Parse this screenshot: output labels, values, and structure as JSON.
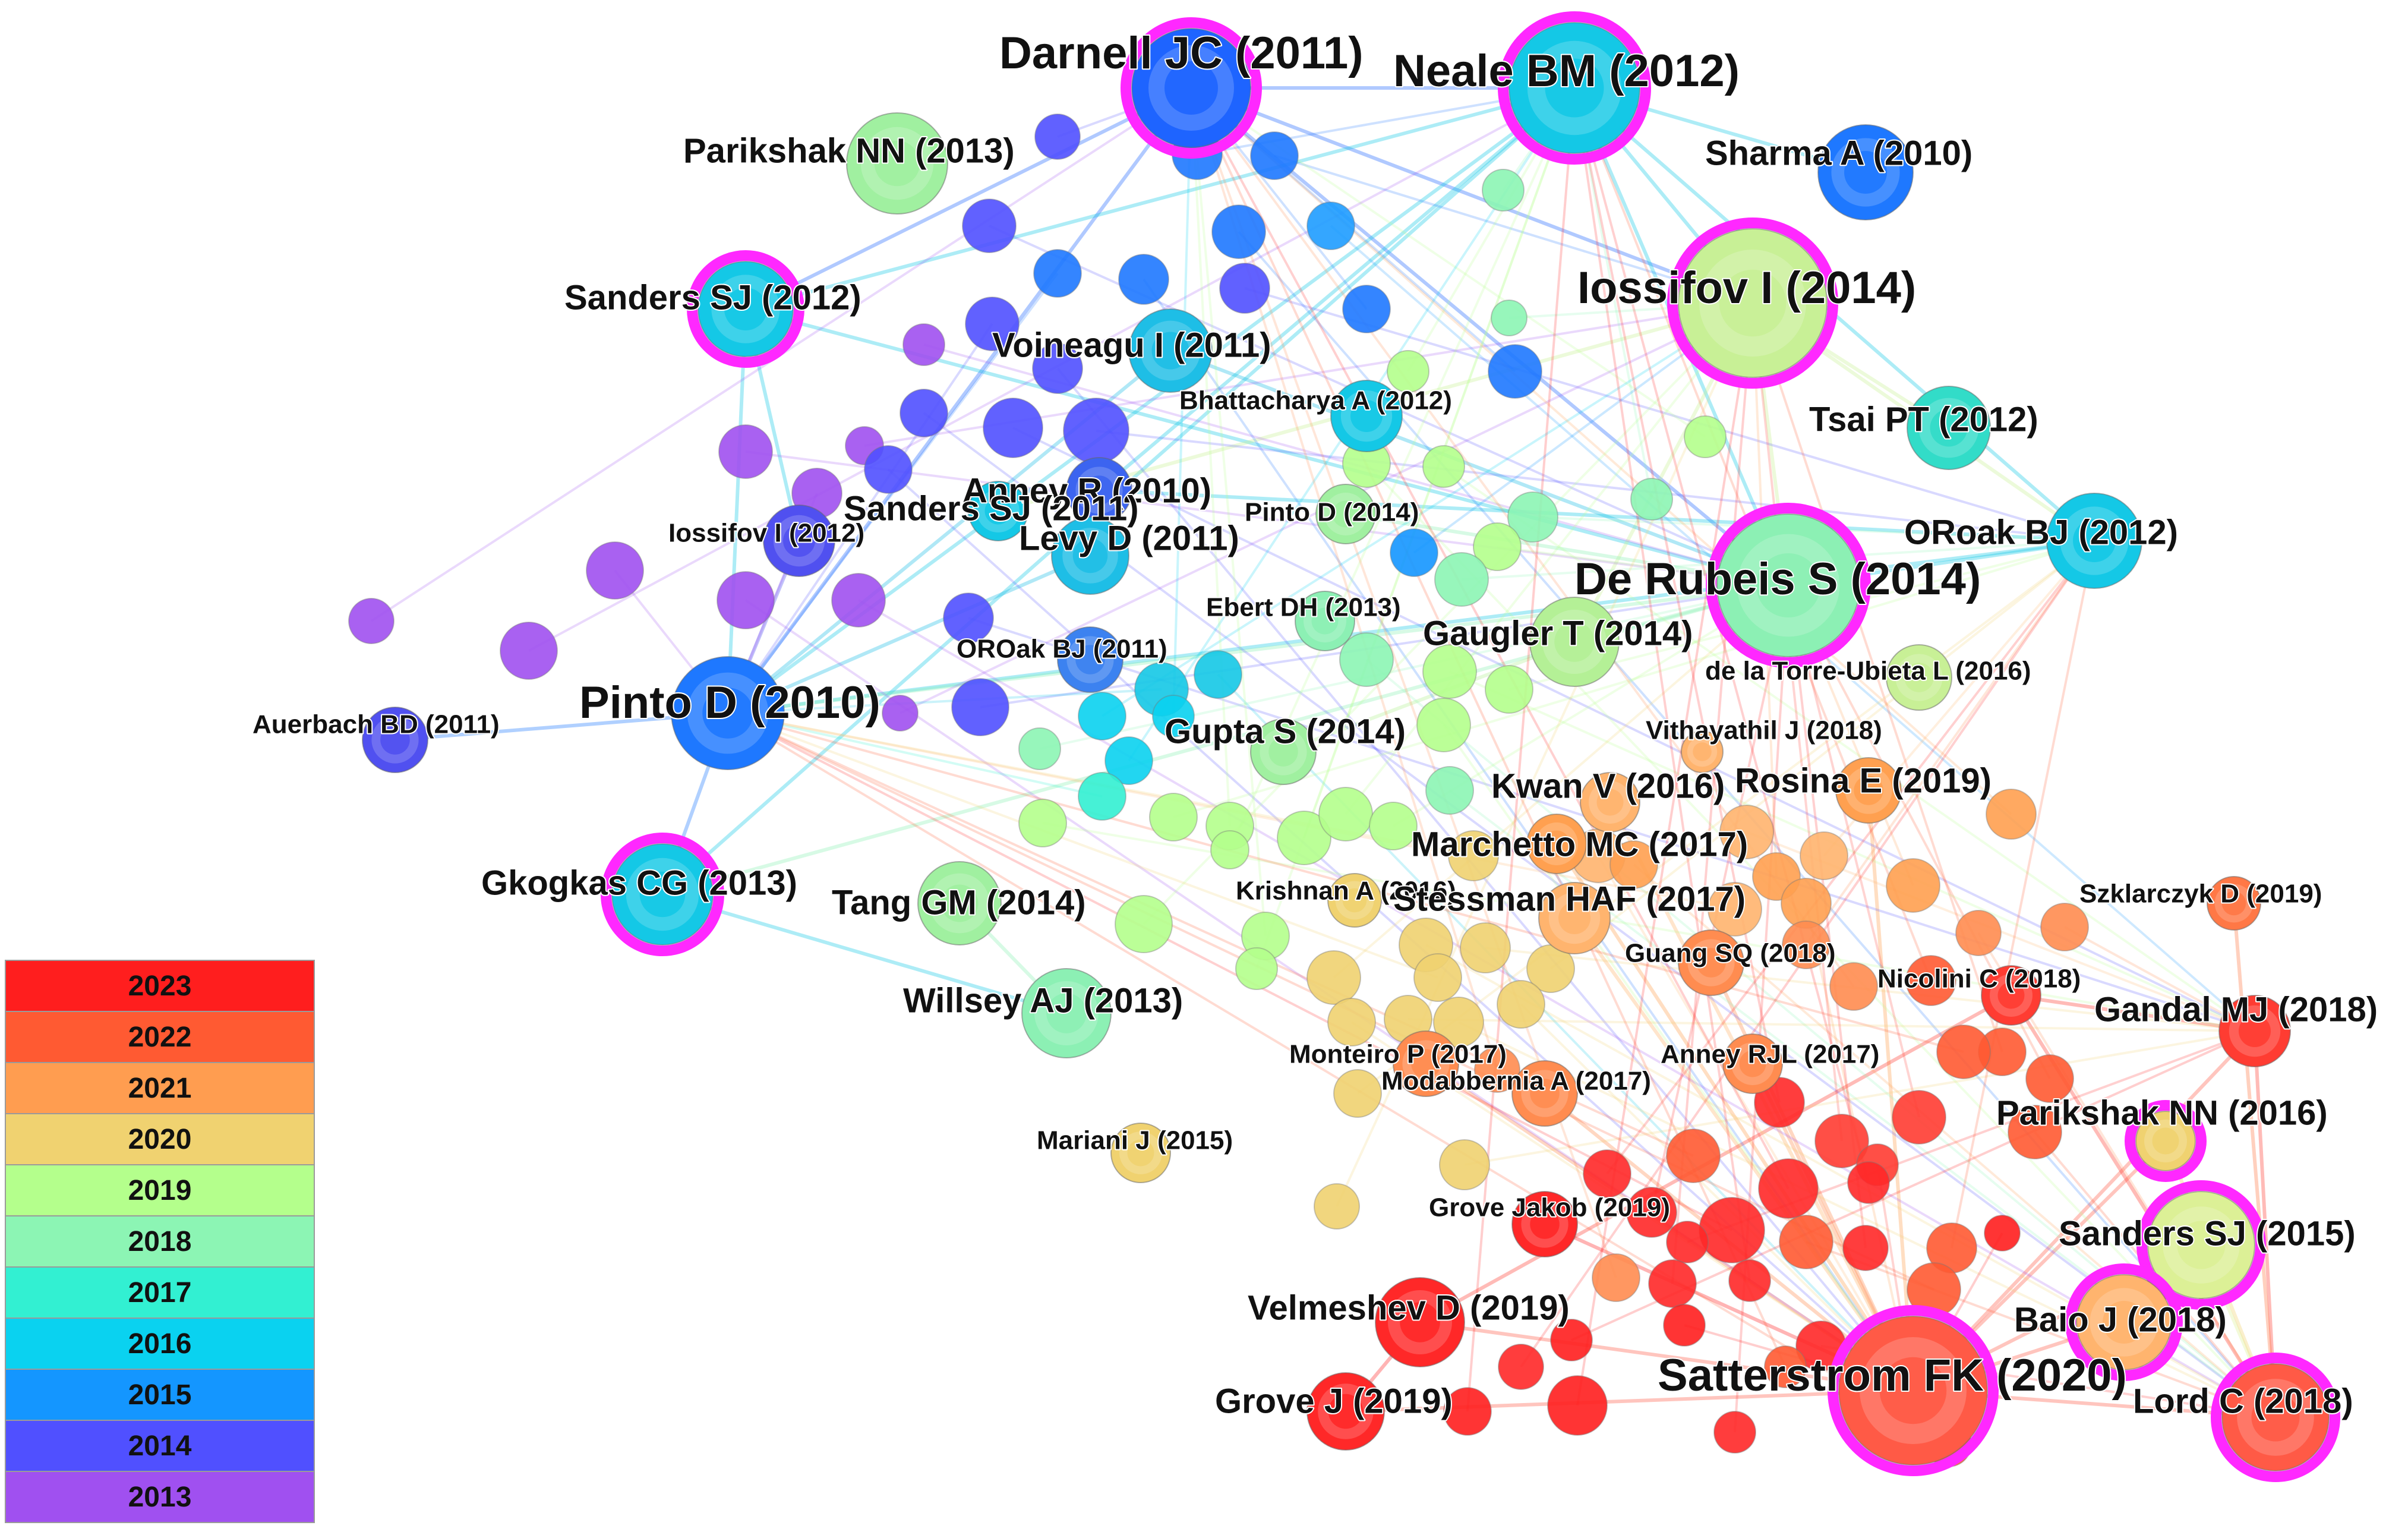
{
  "legend": {
    "years": [
      "2023",
      "2022",
      "2021",
      "2020",
      "2019",
      "2018",
      "2017",
      "2016",
      "2015",
      "2014",
      "2013"
    ],
    "colors": [
      "#ff1e1e",
      "#ff5a32",
      "#ff9d50",
      "#f0d270",
      "#b4ff8c",
      "#8cf5b4",
      "#32f0d2",
      "#0ad2f0",
      "#1496ff",
      "#5050ff",
      "#a050f0"
    ]
  },
  "nodes": [
    {
      "label": "Darnell JC (2011)",
      "color": "#1e64ff",
      "burst": true
    },
    {
      "label": "Neale BM (2012)",
      "color": "#14c8e6",
      "burst": true
    },
    {
      "label": "Parikshak NN (2013)",
      "color": "#a0f0a0",
      "burst": false
    },
    {
      "label": "Sharma A (2010)",
      "color": "#1e78ff",
      "burst": false
    },
    {
      "label": "Sanders SJ (2012)",
      "color": "#14c8e6",
      "burst": true
    },
    {
      "label": "Iossifov I (2014)",
      "color": "#c8f096",
      "burst": true
    },
    {
      "label": "Voineagu I (2011)",
      "color": "#1ebee6",
      "burst": false
    },
    {
      "label": "Bhattacharya A (2012)",
      "color": "#14c8e6",
      "burst": false
    },
    {
      "label": "Tsai PT (2012)",
      "color": "#32dcc8",
      "burst": false
    },
    {
      "label": "Anney R (2010)",
      "color": "#3c64f0",
      "burst": false
    },
    {
      "label": "Sanders SJ (2011)",
      "color": "#14c8e6",
      "burst": false
    },
    {
      "label": "Pinto D (2014)",
      "color": "#a0f0a0",
      "burst": false
    },
    {
      "label": "ORoak BJ (2012)",
      "color": "#14c8e6",
      "burst": false
    },
    {
      "label": "Iossifov I (2012)",
      "color": "#5050f0",
      "burst": false
    },
    {
      "label": "Levy D (2011)",
      "color": "#1ebee6",
      "burst": false
    },
    {
      "label": "De Rubeis S (2014)",
      "color": "#8cf0b4",
      "burst": true
    },
    {
      "label": "Ebert DH (2013)",
      "color": "#8cf0b4",
      "burst": false
    },
    {
      "label": "Gaugler T (2014)",
      "color": "#b4f096",
      "burst": false
    },
    {
      "label": "OROak BJ (2011)",
      "color": "#3c82f0",
      "burst": false
    },
    {
      "label": "de la Torre-Ubieta L (2016)",
      "color": "#c8f096",
      "burst": false
    },
    {
      "label": "Pinto D (2010)",
      "color": "#1e78ff",
      "burst": false
    },
    {
      "label": "Auerbach BD (2011)",
      "color": "#5050f0",
      "burst": false
    },
    {
      "label": "Vithayathil J (2018)",
      "color": "#ffb46e",
      "burst": false
    },
    {
      "label": "Gupta S (2014)",
      "color": "#a0f0a0",
      "burst": false
    },
    {
      "label": "Kwan V (2016)",
      "color": "#ffb46e",
      "burst": false
    },
    {
      "label": "Rosina E (2019)",
      "color": "#ffa050",
      "burst": false
    },
    {
      "label": "Marchetto MC (2017)",
      "color": "#ffa050",
      "burst": false
    },
    {
      "label": "Gkogkas CG (2013)",
      "color": "#14c8e6",
      "burst": true
    },
    {
      "label": "Tang GM (2014)",
      "color": "#a0f0a0",
      "burst": false
    },
    {
      "label": "Krishnan A (2016)",
      "color": "#f0d270",
      "burst": false
    },
    {
      "label": "Stessman HAF (2017)",
      "color": "#ffb46e",
      "burst": false
    },
    {
      "label": "Szklarczyk D (2019)",
      "color": "#ff7846",
      "burst": false
    },
    {
      "label": "Guang SQ (2018)",
      "color": "#ff8c50",
      "burst": false
    },
    {
      "label": "Nicolini C (2018)",
      "color": "#ff3c32",
      "burst": false
    },
    {
      "label": "Willsey AJ (2013)",
      "color": "#8cf0b4",
      "burst": false
    },
    {
      "label": "Gandal MJ (2018)",
      "color": "#ff3c32",
      "burst": false
    },
    {
      "label": "Monteiro P (2017)",
      "color": "#ff8c50",
      "burst": false
    },
    {
      "label": "Anney RJL (2017)",
      "color": "#ff8c50",
      "burst": false
    },
    {
      "label": "Modabbernia A (2017)",
      "color": "#ff8c50",
      "burst": false
    },
    {
      "label": "Parikshak NN (2016)",
      "color": "#f0d270",
      "burst": true
    },
    {
      "label": "Mariani J (2015)",
      "color": "#f0d270",
      "burst": false
    },
    {
      "label": "Grove Jakob (2019)",
      "color": "#ff2828",
      "burst": false
    },
    {
      "label": "Sanders SJ (2015)",
      "color": "#dcf096",
      "burst": true
    },
    {
      "label": "Velmeshev D (2019)",
      "color": "#ff2828",
      "burst": false
    },
    {
      "label": "Baio J (2018)",
      "color": "#ffb46e",
      "burst": true
    },
    {
      "label": "Satterstrom FK (2020)",
      "color": "#ff5a46",
      "burst": true
    },
    {
      "label": "Grove J (2019)",
      "color": "#ff2828",
      "burst": false
    },
    {
      "label": "Lord C (2018)",
      "color": "#ff5a46",
      "burst": true
    }
  ]
}
